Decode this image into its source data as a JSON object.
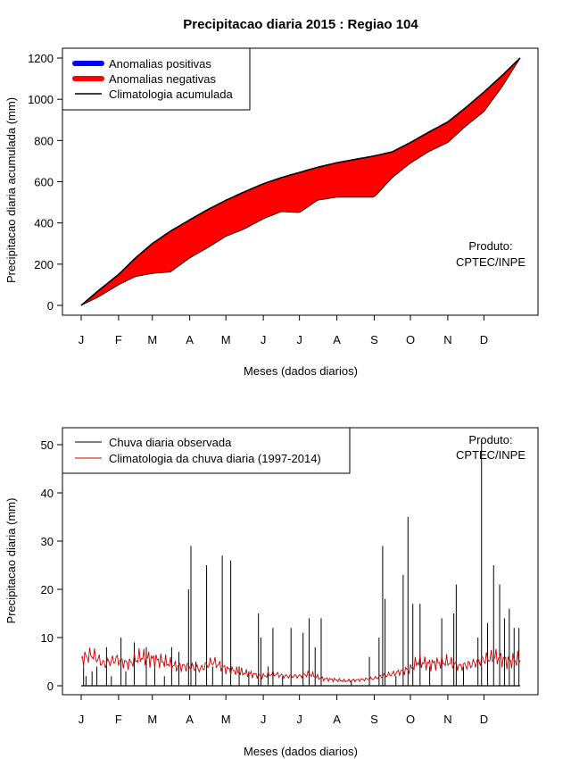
{
  "title": "Precipitacao diaria 2015 : Regiao 104",
  "colors": {
    "positive": "#0000ff",
    "negative": "#ff0000",
    "black": "#000000",
    "clim_daily": "#cc0000"
  },
  "chart_data": [
    {
      "type": "area",
      "title": "Precipitacao diaria 2015 : Regiao 104",
      "xlabel": "Meses (dados diarios)",
      "ylabel": "Precipitacao diaria acumulada (mm)",
      "xlim": [
        1,
        365
      ],
      "ylim": [
        0,
        1200
      ],
      "yticks": [
        0,
        200,
        400,
        600,
        800,
        1000,
        1200
      ],
      "month_labels": [
        "J",
        "F",
        "M",
        "A",
        "M",
        "J",
        "J",
        "A",
        "S",
        "O",
        "N",
        "D"
      ],
      "month_days": [
        1,
        32,
        60,
        91,
        121,
        152,
        182,
        213,
        244,
        274,
        305,
        335
      ],
      "legend": [
        "Anomalias positivas",
        "Anomalias negativas",
        "Climatologia acumulada"
      ],
      "legend_position": "top-left",
      "annotation": [
        "Produto:",
        "CPTEC/INPE"
      ],
      "climatology_accumulated": {
        "x": [
          1,
          15,
          32,
          46,
          60,
          75,
          91,
          106,
          121,
          136,
          152,
          167,
          182,
          197,
          213,
          228,
          244,
          259,
          274,
          289,
          305,
          320,
          335,
          350,
          365
        ],
        "y": [
          0,
          70,
          150,
          230,
          300,
          360,
          415,
          465,
          510,
          550,
          590,
          620,
          645,
          670,
          692,
          708,
          725,
          745,
          790,
          840,
          890,
          960,
          1035,
          1115,
          1200
        ]
      },
      "observed_accumulated": {
        "x": [
          1,
          15,
          32,
          46,
          60,
          75,
          91,
          106,
          121,
          136,
          152,
          167,
          182,
          197,
          213,
          228,
          244,
          259,
          274,
          289,
          305,
          320,
          335,
          350,
          365
        ],
        "y": [
          0,
          40,
          100,
          140,
          155,
          162,
          230,
          280,
          335,
          370,
          420,
          455,
          450,
          510,
          525,
          525,
          525,
          620,
          690,
          745,
          790,
          870,
          940,
          1060,
          1200
        ]
      }
    },
    {
      "type": "bar",
      "xlabel": "Meses (dados diarios)",
      "ylabel": "Precipitacao diaria (mm)",
      "xlim": [
        1,
        365
      ],
      "ylim": [
        0,
        52
      ],
      "yticks": [
        0,
        10,
        20,
        30,
        40,
        50
      ],
      "month_labels": [
        "J",
        "F",
        "M",
        "A",
        "M",
        "J",
        "J",
        "A",
        "S",
        "O",
        "N",
        "D"
      ],
      "month_days": [
        1,
        32,
        60,
        91,
        121,
        152,
        182,
        213,
        244,
        274,
        305,
        335
      ],
      "legend": [
        "Chuva diaria observada",
        "Climatologia da chuva diaria (1997-2014)"
      ],
      "legend_position": "top-left",
      "annotation": [
        "Produto:",
        "CPTEC/INPE"
      ],
      "observed_daily": {
        "days": [
          3,
          5,
          10,
          14,
          22,
          26,
          34,
          38,
          45,
          55,
          62,
          70,
          76,
          82,
          90,
          92,
          96,
          105,
          110,
          118,
          125,
          132,
          140,
          148,
          150,
          156,
          160,
          168,
          175,
          185,
          190,
          195,
          200,
          225,
          240,
          248,
          251,
          253,
          262,
          268,
          272,
          276,
          282,
          290,
          300,
          310,
          312,
          318,
          330,
          333,
          338,
          343,
          348,
          352,
          356,
          360,
          364
        ],
        "values": [
          4,
          2,
          3,
          4,
          8,
          2,
          10,
          3,
          9,
          8,
          4,
          2,
          8,
          7,
          20,
          29,
          5,
          25,
          4,
          27,
          26,
          4,
          3,
          15,
          10,
          4,
          12,
          2,
          12,
          11,
          14,
          8,
          14,
          1,
          6,
          10,
          29,
          18,
          2,
          23,
          35,
          17,
          17,
          4,
          14,
          15,
          21,
          4,
          10,
          51,
          13,
          25,
          21,
          14,
          16,
          12,
          12
        ]
      },
      "climatology_daily": {
        "x": [
          1,
          10,
          20,
          30,
          40,
          50,
          60,
          70,
          80,
          91,
          100,
          110,
          121,
          130,
          140,
          152,
          160,
          170,
          182,
          190,
          200,
          213,
          220,
          230,
          244,
          250,
          260,
          274,
          280,
          290,
          305,
          315,
          325,
          335,
          345,
          355,
          365
        ],
        "y": [
          5.5,
          6.5,
          4.5,
          5.5,
          4.5,
          6,
          5.5,
          5,
          4,
          4,
          3.5,
          5,
          3.5,
          3,
          2.5,
          2,
          2.5,
          2,
          2,
          2.5,
          1.5,
          1.2,
          1,
          1.2,
          1.5,
          2,
          2.5,
          3.5,
          5,
          4.5,
          5,
          4,
          4.5,
          5.5,
          6,
          5,
          5.5
        ]
      }
    }
  ]
}
